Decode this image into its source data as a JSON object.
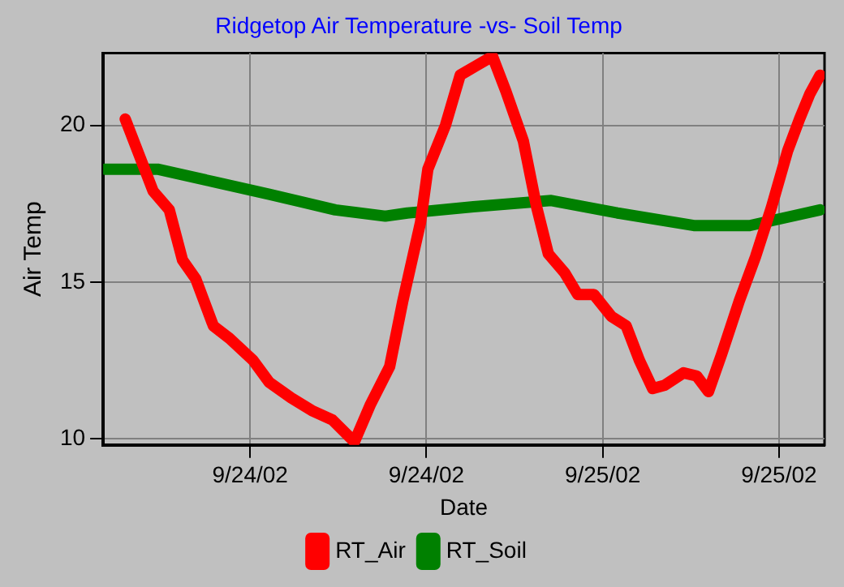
{
  "chart_data": {
    "type": "line",
    "title": "Ridgetop Air Temperature -vs- Soil Temp",
    "xlabel": "Date",
    "ylabel": "Air Temp",
    "xlim": [
      "--09-23T14:00",
      "--09-25T15:06"
    ],
    "xticks": [
      {
        "value": "--09-24T00:00",
        "label": "9/24/02"
      },
      {
        "value": "--09-24T12:00",
        "label": "9/24/02"
      },
      {
        "value": "--09-25T00:00",
        "label": "9/25/02"
      },
      {
        "value": "--09-25T12:00",
        "label": "9/25/02"
      }
    ],
    "ylim": [
      9.8,
      22.3
    ],
    "yticks": [
      10,
      15,
      20
    ],
    "grid": true,
    "legend": "bottom",
    "marker": "none",
    "line_style": "solid",
    "series": [
      {
        "name": "RT_Air",
        "color": "#ff0000",
        "x": [
          "--09-23T15:30",
          "--09-23T17:24",
          "--09-23T18:30",
          "--09-23T19:24",
          "--09-23T20:18",
          "--09-23T21:30",
          "--09-23T22:36",
          "--09-24T00:12",
          "--09-24T01:18",
          "--09-24T02:48",
          "--09-24T04:12",
          "--09-24T05:36",
          "--09-24T07:06",
          "--09-24T08:12",
          "--09-24T09:30",
          "--09-24T10:24",
          "--09-24T11:36",
          "--09-24T12:06",
          "--09-24T13:18",
          "--09-24T14:18",
          "--09-24T15:24",
          "--09-24T16:30",
          "--09-24T17:24",
          "--09-24T18:36",
          "--09-24T19:30",
          "--09-24T20:18",
          "--09-24T21:24",
          "--09-24T22:18",
          "--09-24T23:24",
          "--09-25T00:36",
          "--09-25T01:36",
          "--09-25T02:30",
          "--09-25T03:24",
          "--09-25T04:12",
          "--09-25T05:30",
          "--09-25T06:24",
          "--09-25T07:12",
          "--09-25T08:06",
          "--09-25T09:18",
          "--09-25T10:24",
          "--09-25T11:30",
          "--09-25T12:36",
          "--09-25T13:24",
          "--09-25T14:06",
          "--09-25T14:48"
        ],
        "values": [
          20.2,
          17.9,
          17.3,
          15.7,
          15.1,
          13.6,
          13.2,
          12.5,
          11.8,
          11.3,
          10.9,
          10.6,
          9.9,
          11.1,
          12.3,
          14.4,
          16.9,
          18.6,
          20.0,
          21.6,
          21.9,
          22.2,
          21.1,
          19.5,
          17.4,
          15.9,
          15.3,
          14.6,
          14.6,
          13.9,
          13.6,
          12.5,
          11.6,
          11.7,
          12.1,
          12.0,
          11.5,
          12.7,
          14.4,
          15.8,
          17.4,
          19.2,
          20.2,
          21.0,
          21.6
        ]
      },
      {
        "name": "RT_Soil",
        "color": "#008000",
        "x": [
          "--09-23T14:06",
          "--09-23T17:42",
          "--09-23T21:30",
          "--09-24T01:18",
          "--09-24T05:48",
          "--09-24T09:12",
          "--09-24T10:42",
          "--09-24T15:12",
          "--09-24T20:30",
          "--09-25T01:00",
          "--09-25T06:12",
          "--09-25T10:00",
          "--09-25T14:48"
        ],
        "values": [
          18.6,
          18.6,
          18.2,
          17.8,
          17.3,
          17.1,
          17.2,
          17.4,
          17.6,
          17.2,
          16.8,
          16.8,
          17.3
        ]
      }
    ]
  }
}
